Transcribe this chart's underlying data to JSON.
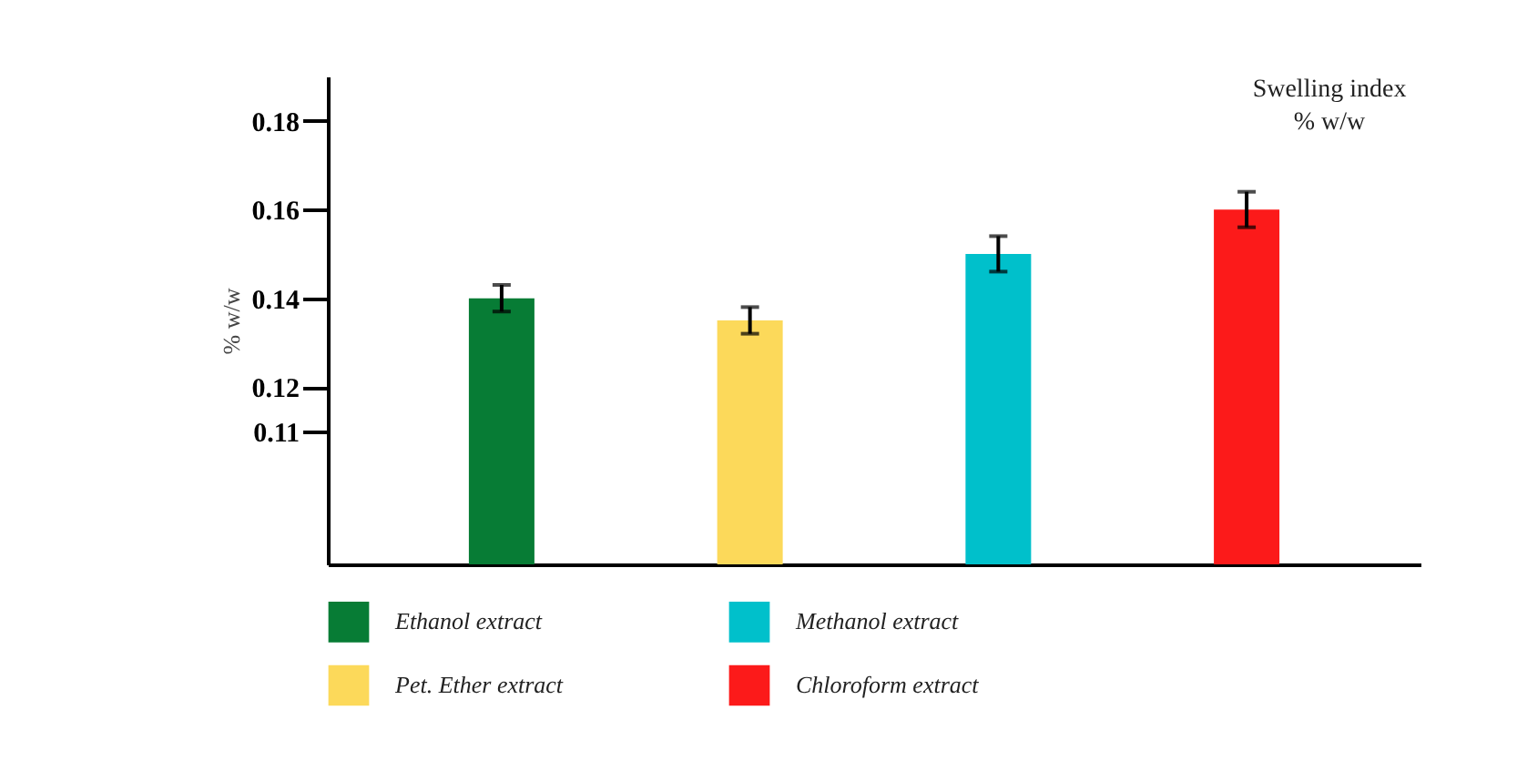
{
  "chart_data": {
    "type": "bar",
    "ylabel": "% w/w",
    "categories": [
      null,
      null,
      null,
      null
    ],
    "series": [
      {
        "name": "Ethanol  extract",
        "color": "#077c35",
        "values": [
          0.14,
          null,
          null,
          null
        ],
        "errors": [
          0.003,
          null,
          null,
          null
        ]
      },
      {
        "name": "Pet. Ether extract",
        "color": "#fcd95a",
        "values": [
          null,
          0.135,
          null,
          null
        ],
        "errors": [
          null,
          0.003,
          null,
          null
        ]
      },
      {
        "name": "Methanol extract",
        "color": "#00c0cb",
        "values": [
          null,
          null,
          0.15,
          null
        ],
        "errors": [
          null,
          null,
          0.004,
          null
        ]
      },
      {
        "name": "Chloroform  extract",
        "color": "#fc1a1a",
        "values": [
          null,
          null,
          null,
          0.16
        ],
        "errors": [
          null,
          null,
          null,
          0.004
        ]
      }
    ],
    "ylim": [
      0.08,
      0.19
    ],
    "yticks": [
      0.11,
      0.12,
      0.14,
      0.16,
      0.18
    ],
    "grid": false,
    "legend": "bottom",
    "tick_labels": "y",
    "annotations": [
      "Swelling index\n% w/w"
    ]
  }
}
